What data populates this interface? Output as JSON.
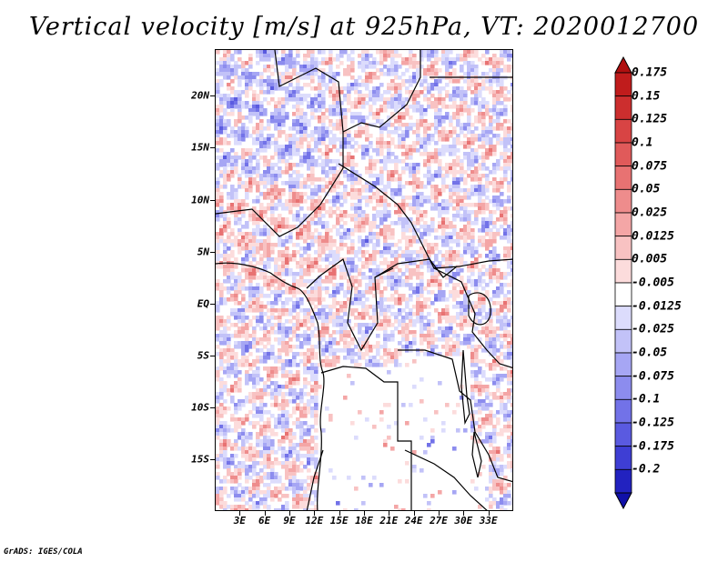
{
  "title": "Vertical velocity [m/s] at 925hPa, VT: 2020012700",
  "footer": "GrADS: IGES/COLA",
  "map": {
    "lon_range": [
      0,
      36
    ],
    "lat_range": [
      -20,
      24.5
    ],
    "y_axis": {
      "ticks": [
        {
          "label": "20N",
          "lat": 20
        },
        {
          "label": "15N",
          "lat": 15
        },
        {
          "label": "10N",
          "lat": 10
        },
        {
          "label": "5N",
          "lat": 5
        },
        {
          "label": "EQ",
          "lat": 0
        },
        {
          "label": "5S",
          "lat": -5
        },
        {
          "label": "10S",
          "lat": -10
        },
        {
          "label": "15S",
          "lat": -15
        }
      ]
    },
    "x_axis": {
      "ticks": [
        {
          "label": "3E",
          "lon": 3
        },
        {
          "label": "6E",
          "lon": 6
        },
        {
          "label": "9E",
          "lon": 9
        },
        {
          "label": "12E",
          "lon": 12
        },
        {
          "label": "15E",
          "lon": 15
        },
        {
          "label": "18E",
          "lon": 18
        },
        {
          "label": "21E",
          "lon": 21
        },
        {
          "label": "24E",
          "lon": 24
        },
        {
          "label": "27E",
          "lon": 27
        },
        {
          "label": "30E",
          "lon": 30
        },
        {
          "label": "33E",
          "lon": 33
        }
      ]
    }
  },
  "colorbar": {
    "bins": [
      {
        "label": "0.175",
        "color": "#c01c1c"
      },
      {
        "label": "0.15",
        "color": "#cc2e2e"
      },
      {
        "label": "0.125",
        "color": "#d84444"
      },
      {
        "label": "0.1",
        "color": "#e05a5a"
      },
      {
        "label": "0.075",
        "color": "#e87272"
      },
      {
        "label": "0.05",
        "color": "#ee8c8c"
      },
      {
        "label": "0.025",
        "color": "#f4a6a6"
      },
      {
        "label": "0.0125",
        "color": "#f8c2c2"
      },
      {
        "label": "0.005",
        "color": "#fcdcdc"
      },
      {
        "label": "-0.005",
        "color": "#ffffff"
      },
      {
        "label": "-0.0125",
        "color": "#dcdcfc"
      },
      {
        "label": "-0.025",
        "color": "#c2c2f8"
      },
      {
        "label": "-0.05",
        "color": "#a6a6f4"
      },
      {
        "label": "-0.075",
        "color": "#8c8cee"
      },
      {
        "label": "-0.1",
        "color": "#7272e8"
      },
      {
        "label": "-0.125",
        "color": "#5a5ae0"
      },
      {
        "label": "-0.175",
        "color": "#3e3ed4"
      },
      {
        "label": "-0.2",
        "color": "#2222c0"
      }
    ],
    "top_arrow_color": "#b01010",
    "bottom_arrow_color": "#1010a8"
  }
}
